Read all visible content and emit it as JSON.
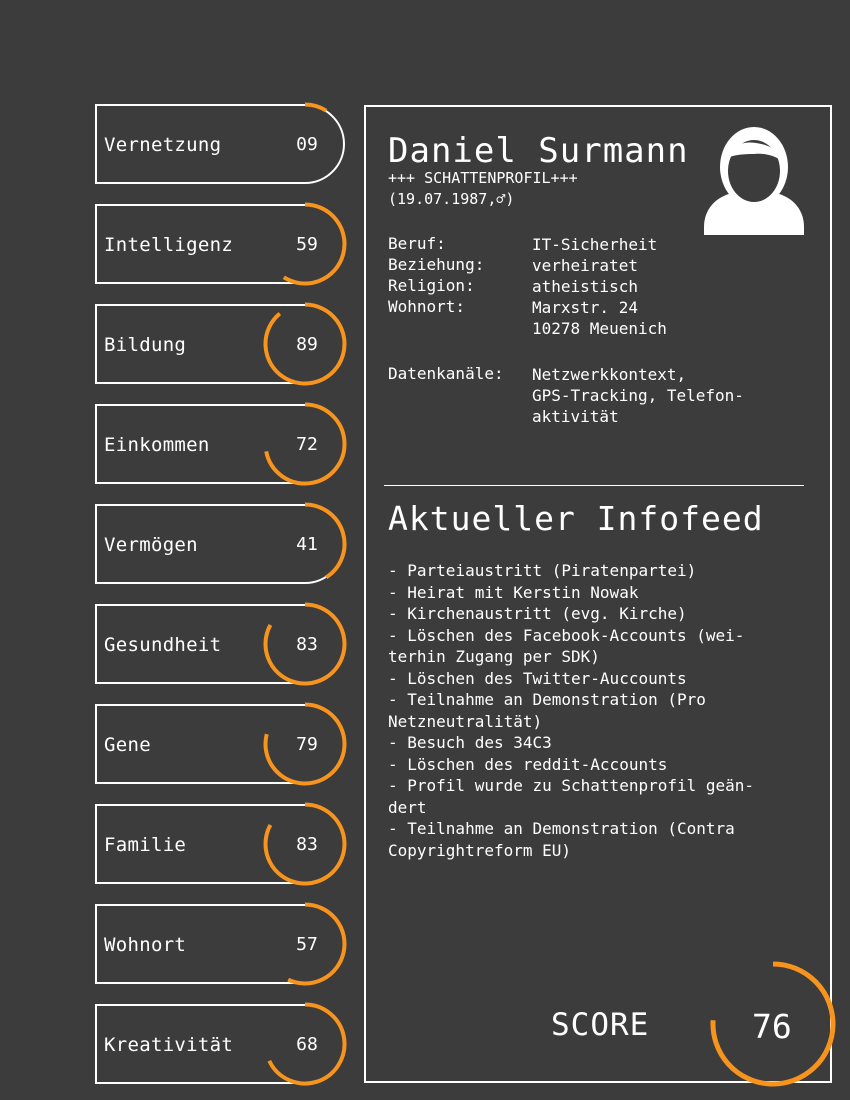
{
  "accent_color": "#f7941d",
  "categories": [
    {
      "label": "Vernetzung",
      "value": "09",
      "fraction": 0.09
    },
    {
      "label": "Intelligenz",
      "value": "59",
      "fraction": 0.59
    },
    {
      "label": "Bildung",
      "value": "89",
      "fraction": 0.89
    },
    {
      "label": "Einkommen",
      "value": "72",
      "fraction": 0.72
    },
    {
      "label": "Vermögen",
      "value": "41",
      "fraction": 0.41
    },
    {
      "label": "Gesundheit",
      "value": "83",
      "fraction": 0.83
    },
    {
      "label": "Gene",
      "value": "79",
      "fraction": 0.79
    },
    {
      "label": "Familie",
      "value": "83",
      "fraction": 0.83
    },
    {
      "label": "Wohnort",
      "value": "57",
      "fraction": 0.57
    },
    {
      "label": "Kreativität",
      "value": "68",
      "fraction": 0.68
    }
  ],
  "profile": {
    "name": "Daniel Surmann",
    "subtitle": "+++ SCHATTENPROFIL+++",
    "birth": "(19.07.1987,♂)",
    "facts": [
      {
        "label": "Beruf:",
        "lines": [
          "IT-Sicherheit"
        ]
      },
      {
        "label": "Beziehung:",
        "lines": [
          "verheiratet"
        ]
      },
      {
        "label": "Religion:",
        "lines": [
          "atheistisch"
        ]
      },
      {
        "label": "Wohnort:",
        "lines": [
          "Marxstr. 24",
          "10278 Meuenich"
        ]
      },
      {
        "label": "Datenkanäle:",
        "lines": [
          "Netzwerkkontext,",
          "GPS-Tracking, Telefon-",
          "aktivität"
        ]
      }
    ],
    "avatar_icon": "user-silhouette-icon"
  },
  "feed": {
    "title": "Aktueller Infofeed",
    "lines": [
      "- Parteiaustritt (Piratenpartei)",
      "- Heirat mit Kerstin Nowak",
      "- Kirchenaustritt (evg. Kirche)",
      "- Löschen des Facebook-Accounts (wei-",
      "terhin Zugang per SDK)",
      "- Löschen des Twitter-Auccounts",
      "- Teilnahme an Demonstration (Pro",
      "Netzneutralität)",
      "- Besuch des 34C3",
      "- Löschen des reddit-Accounts",
      "- Profil wurde zu Schattenprofil geän-",
      "dert",
      "- Teilnahme an Demonstration (Contra",
      "Copyrightreform EU)"
    ]
  },
  "score": {
    "label": "SCORE",
    "value": "76",
    "fraction": 0.76
  }
}
